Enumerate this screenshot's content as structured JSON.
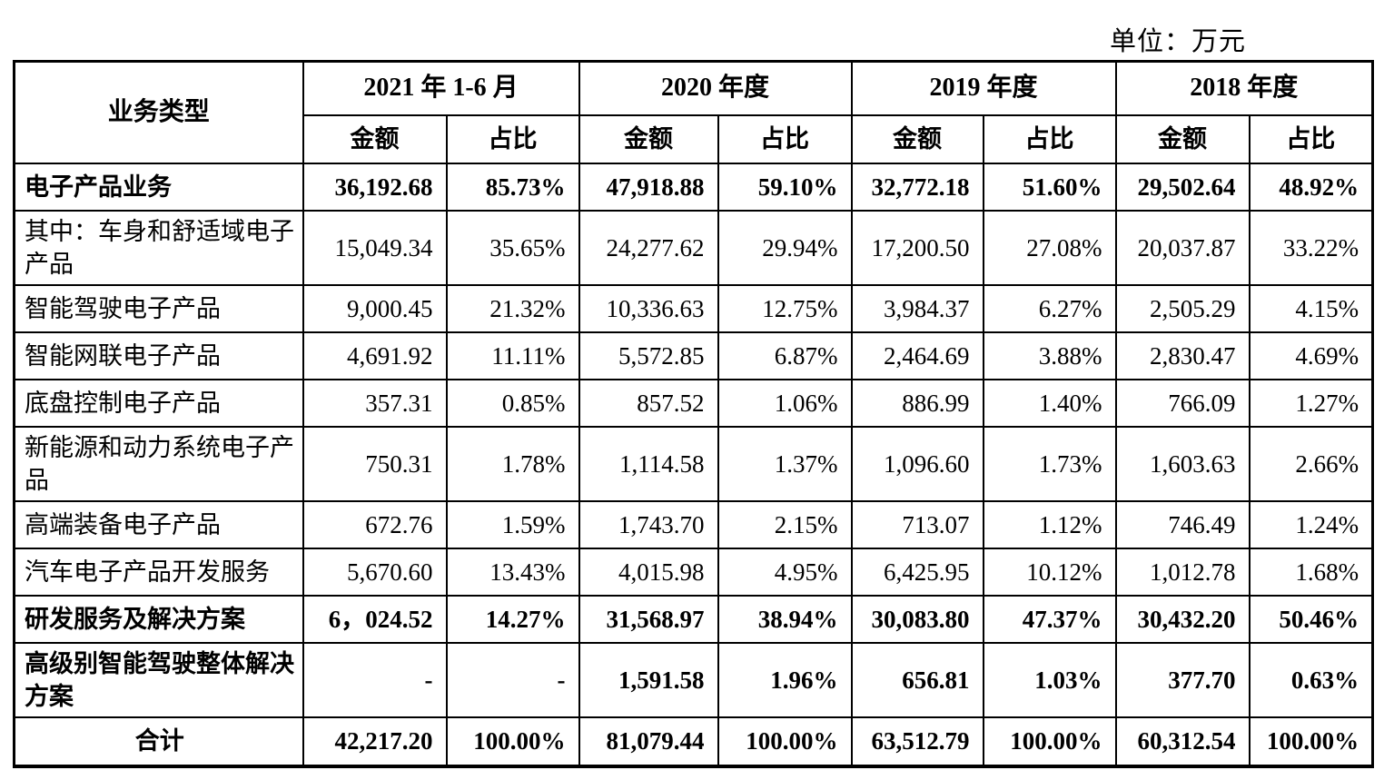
{
  "page": {
    "unit_label": "单位：万元"
  },
  "table": {
    "header": {
      "business_type": "业务类型",
      "periods": [
        "2021 年 1-6 月",
        "2020 年度",
        "2019 年度",
        "2018 年度"
      ],
      "amount_label": "金额",
      "share_label": "占比"
    },
    "rows": [
      {
        "label": "电子产品业务",
        "bold": true,
        "total": false,
        "values": [
          "36,192.68",
          "85.73%",
          "47,918.88",
          "59.10%",
          "32,772.18",
          "51.60%",
          "29,502.64",
          "48.92%"
        ]
      },
      {
        "label": "其中：车身和舒适域电子产品",
        "bold": false,
        "total": false,
        "values": [
          "15,049.34",
          "35.65%",
          "24,277.62",
          "29.94%",
          "17,200.50",
          "27.08%",
          "20,037.87",
          "33.22%"
        ]
      },
      {
        "label": "智能驾驶电子产品",
        "bold": false,
        "total": false,
        "values": [
          "9,000.45",
          "21.32%",
          "10,336.63",
          "12.75%",
          "3,984.37",
          "6.27%",
          "2,505.29",
          "4.15%"
        ]
      },
      {
        "label": "智能网联电子产品",
        "bold": false,
        "total": false,
        "values": [
          "4,691.92",
          "11.11%",
          "5,572.85",
          "6.87%",
          "2,464.69",
          "3.88%",
          "2,830.47",
          "4.69%"
        ]
      },
      {
        "label": "底盘控制电子产品",
        "bold": false,
        "total": false,
        "values": [
          "357.31",
          "0.85%",
          "857.52",
          "1.06%",
          "886.99",
          "1.40%",
          "766.09",
          "1.27%"
        ]
      },
      {
        "label": "新能源和动力系统电子产品",
        "bold": false,
        "total": false,
        "values": [
          "750.31",
          "1.78%",
          "1,114.58",
          "1.37%",
          "1,096.60",
          "1.73%",
          "1,603.63",
          "2.66%"
        ]
      },
      {
        "label": "高端装备电子产品",
        "bold": false,
        "total": false,
        "values": [
          "672.76",
          "1.59%",
          "1,743.70",
          "2.15%",
          "713.07",
          "1.12%",
          "746.49",
          "1.24%"
        ]
      },
      {
        "label": "汽车电子产品开发服务",
        "bold": false,
        "total": false,
        "values": [
          "5,670.60",
          "13.43%",
          "4,015.98",
          "4.95%",
          "6,425.95",
          "10.12%",
          "1,012.78",
          "1.68%"
        ]
      },
      {
        "label": "研发服务及解决方案",
        "bold": true,
        "total": false,
        "values": [
          "6，024.52",
          "14.27%",
          "31,568.97",
          "38.94%",
          "30,083.80",
          "47.37%",
          "30,432.20",
          "50.46%"
        ]
      },
      {
        "label": "高级别智能驾驶整体解决方案",
        "bold": true,
        "total": false,
        "values": [
          "-",
          "-",
          "1,591.58",
          "1.96%",
          "656.81",
          "1.03%",
          "377.70",
          "0.63%"
        ]
      },
      {
        "label": "合计",
        "bold": true,
        "total": true,
        "values": [
          "42,217.20",
          "100.00%",
          "81,079.44",
          "100.00%",
          "63,512.79",
          "100.00%",
          "60,312.54",
          "100.00%"
        ]
      }
    ]
  }
}
